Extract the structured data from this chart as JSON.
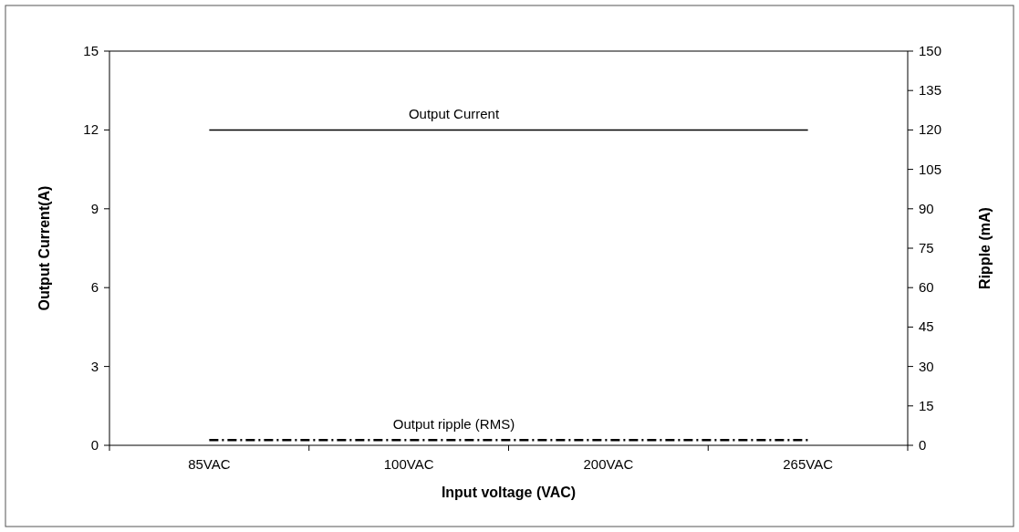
{
  "chart_data": {
    "type": "line",
    "xlabel": "Input voltage (VAC)",
    "ylabel": "Output Current(A)",
    "y2label": "Ripple (mA)",
    "categories": [
      "85VAC",
      "100VAC",
      "200VAC",
      "265VAC"
    ],
    "series": [
      {
        "name": "Output  Current",
        "color": "#000000",
        "values": [
          12,
          12,
          12,
          12
        ],
        "line_style": "solid"
      },
      {
        "name": "Output ripple (RMS)",
        "color": "#000000",
        "values": [
          2,
          2,
          2,
          2
        ],
        "axis": "y2",
        "line_style": "dashed"
      }
    ],
    "ylim": [
      0,
      15
    ],
    "yticks": [
      0,
      3,
      6,
      9,
      12,
      15
    ],
    "y2lim": [
      0,
      150
    ],
    "y2ticks": [
      0,
      15,
      30,
      45,
      60,
      75,
      90,
      105,
      120,
      135,
      150
    ],
    "grid": false,
    "marker": "none"
  }
}
